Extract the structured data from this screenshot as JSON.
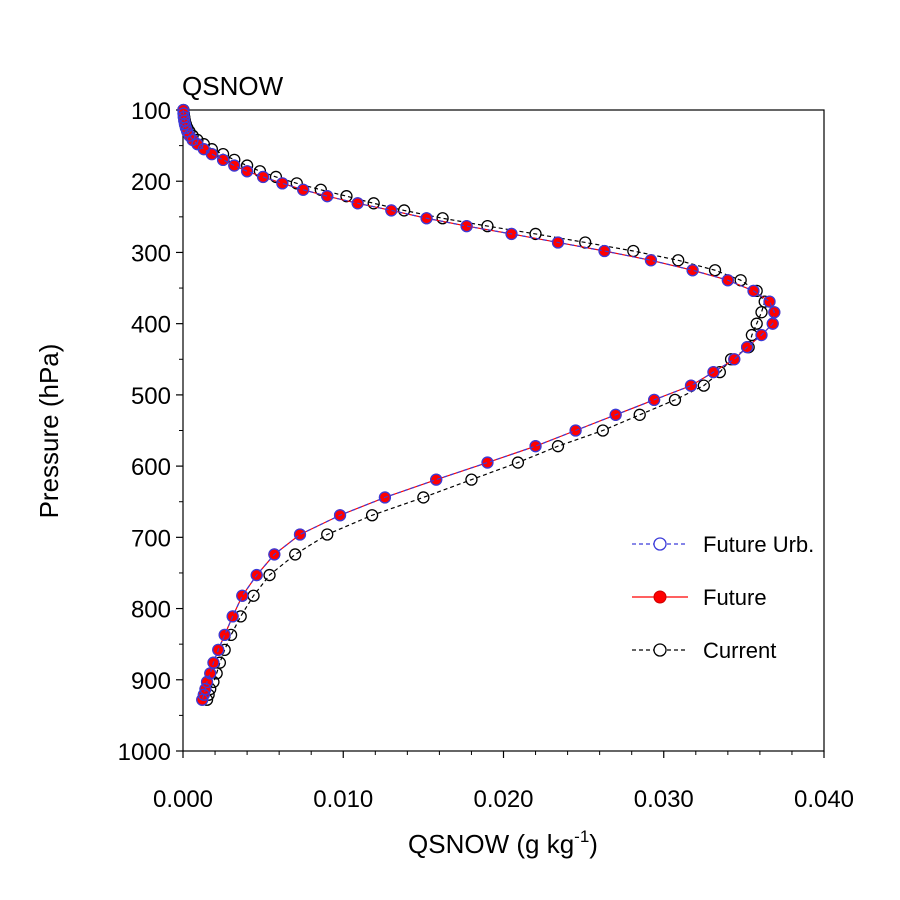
{
  "chart_data": {
    "type": "line",
    "title": "QSNOW",
    "xlabel": {
      "main": "QSNOW (g kg",
      "superscript": "-1",
      "suffix": ")"
    },
    "ylabel": "Pressure (hPa)",
    "xlim": [
      0.0,
      0.04
    ],
    "ylim": [
      100,
      1000
    ],
    "y_inverted": true,
    "xticks": [
      0.0,
      0.01,
      0.02,
      0.03,
      0.04
    ],
    "xtick_labels": [
      "0.000",
      "0.010",
      "0.020",
      "0.030",
      "0.040"
    ],
    "yticks": [
      100,
      200,
      300,
      400,
      500,
      600,
      700,
      800,
      900,
      1000
    ],
    "ytick_labels": [
      "100",
      "200",
      "300",
      "400",
      "500",
      "600",
      "700",
      "800",
      "900",
      "1000"
    ],
    "pressure": [
      100,
      105,
      110,
      115,
      120,
      125,
      130,
      136,
      142,
      148,
      155,
      162,
      170,
      178,
      186,
      194,
      203,
      212,
      221,
      231,
      241,
      252,
      263,
      274,
      286,
      298,
      311,
      325,
      339,
      354,
      369,
      384,
      400,
      416,
      433,
      450,
      468,
      487,
      507,
      528,
      550,
      572,
      595,
      619,
      644,
      669,
      696,
      724,
      753,
      782,
      811,
      837,
      858,
      876,
      891,
      903,
      913,
      921,
      928
    ],
    "series": [
      {
        "name": "Future Urb.",
        "color": "#3b3bd9",
        "dash": "dashed",
        "marker": "open-circle",
        "values": [
          2e-05,
          3e-05,
          5e-05,
          8e-05,
          0.00012,
          0.00018,
          0.00026,
          0.0004,
          0.0006,
          0.0009,
          0.0013,
          0.0018,
          0.0025,
          0.0032,
          0.004,
          0.005,
          0.0062,
          0.0075,
          0.009,
          0.0109,
          0.013,
          0.0152,
          0.0177,
          0.0205,
          0.0234,
          0.0263,
          0.0292,
          0.0318,
          0.034,
          0.0356,
          0.0366,
          0.0369,
          0.0368,
          0.0361,
          0.0352,
          0.0344,
          0.0331,
          0.0317,
          0.0294,
          0.027,
          0.0245,
          0.022,
          0.019,
          0.0158,
          0.0126,
          0.0098,
          0.0073,
          0.0057,
          0.0046,
          0.0037,
          0.0031,
          0.0026,
          0.0022,
          0.0019,
          0.0017,
          0.0015,
          0.0014,
          0.0013,
          0.0012
        ]
      },
      {
        "name": "Future",
        "color": "#ff0000",
        "edge": "#cc0000",
        "dash": "solid",
        "marker": "filled-circle",
        "values": [
          2e-05,
          3e-05,
          5e-05,
          8e-05,
          0.00012,
          0.00018,
          0.00026,
          0.0004,
          0.0006,
          0.0009,
          0.0013,
          0.0018,
          0.0025,
          0.0032,
          0.004,
          0.005,
          0.0062,
          0.0075,
          0.009,
          0.0109,
          0.013,
          0.0152,
          0.0177,
          0.0205,
          0.0234,
          0.0263,
          0.0292,
          0.0318,
          0.034,
          0.0356,
          0.0366,
          0.0369,
          0.0368,
          0.0361,
          0.0352,
          0.0344,
          0.0331,
          0.0317,
          0.0294,
          0.027,
          0.0245,
          0.022,
          0.019,
          0.0158,
          0.0126,
          0.0098,
          0.0073,
          0.0057,
          0.0046,
          0.0037,
          0.0031,
          0.0026,
          0.0022,
          0.0019,
          0.0017,
          0.0015,
          0.0014,
          0.0013,
          0.0012
        ]
      },
      {
        "name": "Current",
        "color": "#000000",
        "dash": "dashed",
        "marker": "open-circle",
        "values": [
          3e-05,
          5e-05,
          8e-05,
          0.00012,
          0.00018,
          0.00027,
          0.0004,
          0.0006,
          0.0009,
          0.0013,
          0.0018,
          0.0025,
          0.0032,
          0.004,
          0.0048,
          0.0058,
          0.0071,
          0.0086,
          0.0102,
          0.0119,
          0.0138,
          0.0162,
          0.019,
          0.022,
          0.0251,
          0.0281,
          0.0309,
          0.0332,
          0.0348,
          0.0358,
          0.0363,
          0.0361,
          0.0358,
          0.0355,
          0.0353,
          0.0342,
          0.0335,
          0.0325,
          0.0307,
          0.0285,
          0.0262,
          0.0234,
          0.0209,
          0.018,
          0.015,
          0.0118,
          0.009,
          0.007,
          0.0054,
          0.0044,
          0.0036,
          0.003,
          0.0026,
          0.0023,
          0.0021,
          0.0019,
          0.0017,
          0.0016,
          0.0015
        ]
      }
    ],
    "legend": {
      "placement": "center-right"
    }
  }
}
